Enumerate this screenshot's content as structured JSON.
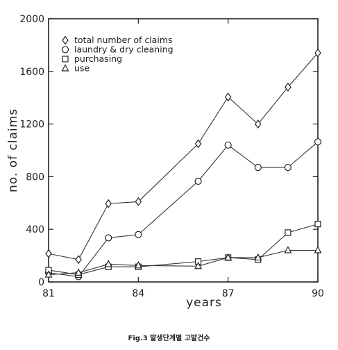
{
  "caption": "Fig.3  발생단계별 고발건수",
  "chart_data": {
    "type": "line",
    "title": "",
    "xlabel": "years",
    "ylabel": "no. of claims",
    "xlim": [
      81,
      90
    ],
    "ylim": [
      0,
      2000
    ],
    "xticks": [
      81,
      84,
      87,
      90
    ],
    "yticks": [
      0,
      400,
      800,
      1200,
      1600,
      2000
    ],
    "grid": false,
    "legend_position": "top-left",
    "x": [
      81,
      82,
      83,
      84,
      86,
      87,
      88,
      89,
      90
    ],
    "series": [
      {
        "name": "total number of claims",
        "marker": "diamond",
        "values": [
          215,
          170,
          595,
          610,
          1050,
          1405,
          1200,
          1480,
          1740
        ]
      },
      {
        "name": "laundry & dry cleaning",
        "marker": "circle",
        "values": [
          70,
          40,
          335,
          360,
          765,
          1040,
          870,
          870,
          1065
        ]
      },
      {
        "name": "purchasing",
        "marker": "square",
        "values": [
          90,
          55,
          115,
          115,
          155,
          185,
          170,
          375,
          440
        ]
      },
      {
        "name": "use",
        "marker": "triangle",
        "values": [
          55,
          70,
          135,
          125,
          120,
          185,
          185,
          240,
          240
        ]
      }
    ]
  }
}
